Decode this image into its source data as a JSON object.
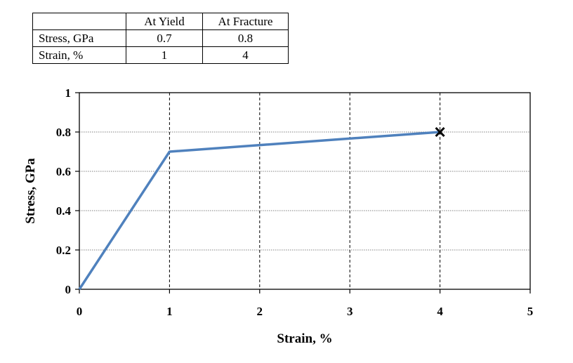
{
  "table": {
    "headers": [
      "",
      "At Yield",
      "At Fracture"
    ],
    "rows": [
      {
        "label": "Stress, GPa",
        "yield": "0.7",
        "fracture": "0.8"
      },
      {
        "label": "Strain, %",
        "yield": "1",
        "fracture": "4"
      }
    ]
  },
  "chart_data": {
    "type": "line",
    "title": "",
    "xlabel": "Strain, %",
    "ylabel": "Stress, GPa",
    "xlim": [
      0,
      5
    ],
    "ylim": [
      0,
      1
    ],
    "x_ticks": [
      "0",
      "1",
      "2",
      "3",
      "4",
      "5"
    ],
    "y_ticks": [
      "0",
      "0.2",
      "0.4",
      "0.6",
      "0.8",
      "1"
    ],
    "grid": {
      "horizontal": "dotted",
      "vertical": "dashed"
    },
    "series": [
      {
        "x": [
          0,
          1,
          4
        ],
        "y": [
          0,
          0.7,
          0.8
        ],
        "color": "#4f81bd"
      }
    ],
    "fracture_marker": {
      "x": 4,
      "y": 0.8,
      "symbol": "cross",
      "color": "#000000"
    }
  }
}
